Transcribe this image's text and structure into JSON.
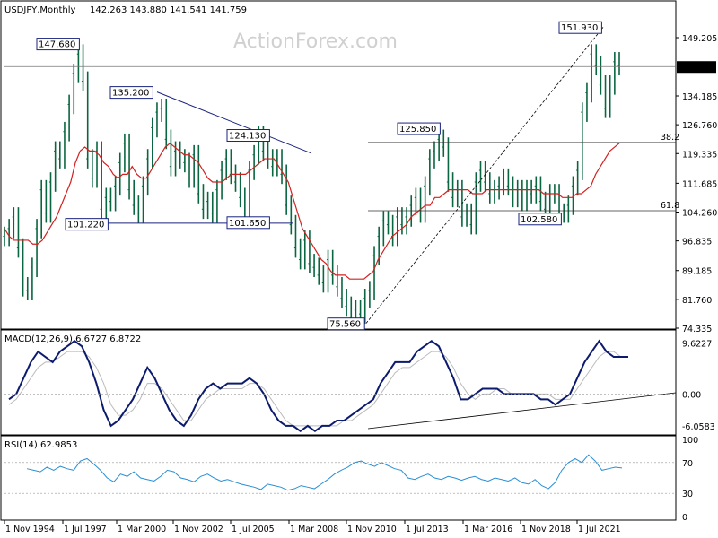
{
  "chart_data": [
    {
      "type": "candlestick",
      "title": "USDJPY,Monthly",
      "ohlc_readout": "142.263 143.880 141.541 141.759",
      "watermark": "ActionForex.com",
      "y_range": [
        74.335,
        156.6
      ],
      "y_ticks": [
        "149.205",
        "141.759",
        "134.185",
        "126.760",
        "119.335",
        "111.685",
        "104.260",
        "96.835",
        "89.185",
        "81.760",
        "74.335"
      ],
      "current_price": "141.759",
      "x_ticks": [
        "1 Nov 1994",
        "1 Jul 1997",
        "1 Mar 2000",
        "1 Nov 2002",
        "1 Jul 2005",
        "1 Mar 2008",
        "1 Nov 2010",
        "1 Jul 2013",
        "1 Mar 2016",
        "1 Nov 2018",
        "1 Jul 2021"
      ],
      "annotations": [
        {
          "label": "147.680",
          "value": 147.68
        },
        {
          "label": "135.200",
          "value": 135.2
        },
        {
          "label": "124.130",
          "value": 124.13
        },
        {
          "label": "101.220",
          "value": 101.22
        },
        {
          "label": "101.650",
          "value": 101.65
        },
        {
          "label": "75.560",
          "value": 75.56
        },
        {
          "label": "125.850",
          "value": 125.85
        },
        {
          "label": "102.580",
          "value": 102.58
        },
        {
          "label": "151.930",
          "value": 151.93
        }
      ],
      "fib_levels": [
        {
          "label": "38.2",
          "value": 122.2
        },
        {
          "label": "61.8",
          "value": 104.6
        }
      ],
      "series": [
        {
          "name": "close",
          "values": [
            98,
            100,
            103,
            95,
            85,
            84,
            90,
            100,
            110,
            104,
            112,
            120,
            118,
            125,
            132,
            140,
            145,
            138,
            118,
            113,
            120,
            105,
            108,
            107,
            111,
            117,
            122,
            110,
            106,
            104,
            111,
            118,
            126,
            130,
            131,
            123,
            116,
            120,
            118,
            117,
            113,
            119,
            109,
            105,
            107,
            104,
            110,
            115,
            118,
            114,
            112,
            108,
            104,
            115,
            119,
            124,
            120,
            118,
            116,
            118,
            114,
            106,
            101,
            95,
            92,
            97,
            91,
            90,
            88,
            86,
            92,
            88,
            85,
            82,
            80,
            77,
            79,
            78,
            82,
            84,
            93,
            98,
            102,
            101,
            98,
            103,
            101,
            103,
            106,
            108,
            104,
            111,
            118,
            120,
            123,
            121,
            112,
            108,
            110,
            103,
            104,
            101,
            112,
            115,
            112,
            109,
            110,
            111,
            113,
            111,
            108,
            110,
            107,
            110,
            109,
            111,
            107,
            105,
            109,
            109,
            104,
            104,
            106,
            111,
            115,
            130,
            135,
            145,
            142,
            137,
            131,
            137,
            143,
            142
          ]
        },
        {
          "name": "ma",
          "values": [
            100,
            98,
            97,
            97,
            97,
            97,
            96,
            96,
            97,
            99,
            101,
            103,
            106,
            109,
            112,
            117,
            120,
            121,
            120,
            120,
            119,
            117,
            116,
            114,
            113,
            114,
            114,
            116,
            114,
            113,
            113,
            115,
            117,
            119,
            121,
            122,
            121,
            120,
            119,
            119,
            118,
            117,
            115,
            113,
            112,
            112,
            112,
            113,
            114,
            114,
            114,
            114,
            115,
            116,
            117,
            118,
            118,
            118,
            116,
            114,
            112,
            108,
            104,
            100,
            98,
            96,
            94,
            92,
            91,
            89,
            88,
            88,
            88,
            87,
            87,
            87,
            87,
            88,
            89,
            92,
            94,
            96,
            98,
            99,
            100,
            101,
            103,
            104,
            105,
            106,
            106,
            108,
            108,
            109,
            110,
            110,
            110,
            110,
            110,
            109,
            109,
            109,
            110,
            110,
            110,
            110,
            110,
            110,
            110,
            110,
            110,
            110,
            110,
            110,
            109,
            109,
            109,
            109,
            108,
            108,
            108,
            109,
            109,
            110,
            111,
            114,
            116,
            118,
            120,
            121,
            122
          ]
        }
      ]
    },
    {
      "type": "line",
      "title": "MACD(12,26,9) 6.6727 6.8722",
      "y_ticks": [
        "9.6227",
        "0.00",
        "-6.0583"
      ],
      "y_range": [
        -7.2,
        11.4
      ],
      "series": [
        {
          "name": "MACD",
          "values": [
            -1,
            0,
            3,
            6,
            8,
            7,
            6,
            8,
            9,
            10,
            9,
            6,
            2,
            -3,
            -6,
            -5,
            -3,
            -1,
            2,
            5,
            3,
            0,
            -3,
            -5,
            -6,
            -4,
            -1,
            1,
            2,
            1,
            2,
            2,
            2,
            3,
            2,
            0,
            -3,
            -5,
            -6,
            -6,
            -7,
            -6,
            -7,
            -6,
            -6,
            -5,
            -5,
            -4,
            -3,
            -2,
            -1,
            2,
            4,
            6,
            6,
            6,
            8,
            9,
            10,
            9,
            6,
            3,
            -1,
            -1,
            0,
            1,
            1,
            1,
            0,
            0,
            0,
            0,
            0,
            -1,
            -1,
            -2,
            -1,
            0,
            3,
            6,
            8,
            10,
            8,
            7,
            7,
            7
          ]
        },
        {
          "name": "signal",
          "values": [
            -2,
            -1,
            1,
            3,
            5,
            6,
            6,
            7,
            8,
            8,
            8,
            7,
            5,
            2,
            -2,
            -4,
            -4,
            -3,
            -1,
            2,
            2,
            1,
            -1,
            -3,
            -5,
            -5,
            -3,
            -1,
            0,
            1,
            1,
            1,
            1,
            2,
            2,
            1,
            -1,
            -3,
            -5,
            -6,
            -6,
            -6,
            -6,
            -6,
            -6,
            -6,
            -5,
            -5,
            -4,
            -3,
            -2,
            0,
            2,
            4,
            5,
            5,
            6,
            7,
            8,
            8,
            7,
            5,
            2,
            0,
            -1,
            0,
            0,
            1,
            1,
            0,
            0,
            0,
            0,
            0,
            0,
            -1,
            -1,
            -1,
            1,
            3,
            5,
            7,
            8,
            8,
            7,
            7
          ]
        }
      ]
    },
    {
      "type": "line",
      "title": "RSI(14) 62.9853",
      "y_ticks": [
        "100",
        "70",
        "30",
        "0"
      ],
      "y_range": [
        0,
        100
      ],
      "series": [
        {
          "name": "RSI",
          "values": [
            62,
            60,
            58,
            64,
            60,
            65,
            62,
            60,
            72,
            75,
            68,
            60,
            50,
            45,
            55,
            52,
            58,
            50,
            48,
            46,
            52,
            60,
            58,
            50,
            48,
            45,
            52,
            55,
            50,
            46,
            48,
            45,
            42,
            40,
            38,
            35,
            42,
            40,
            38,
            34,
            36,
            40,
            38,
            36,
            42,
            48,
            55,
            60,
            64,
            70,
            72,
            68,
            65,
            70,
            66,
            62,
            60,
            50,
            48,
            52,
            55,
            50,
            48,
            52,
            50,
            47,
            50,
            52,
            48,
            46,
            50,
            48,
            46,
            50,
            44,
            42,
            48,
            40,
            36,
            44,
            60,
            70,
            75,
            70,
            80,
            72,
            60,
            62,
            64,
            63
          ]
        }
      ]
    }
  ]
}
